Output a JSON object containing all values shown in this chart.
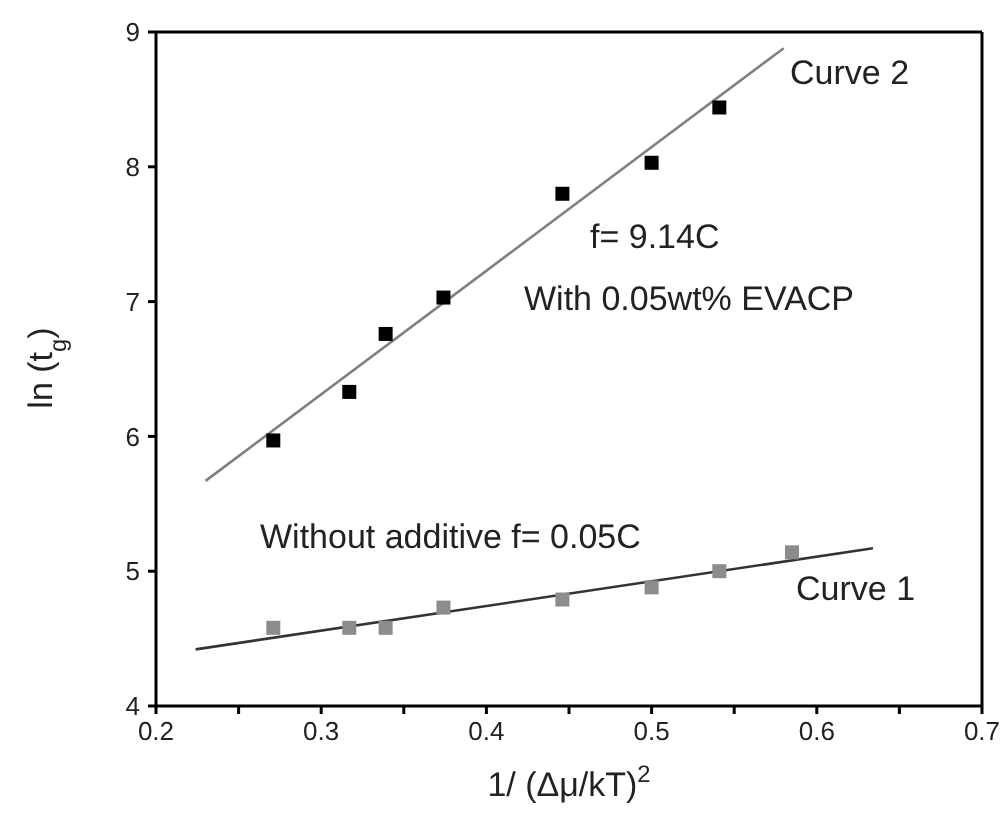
{
  "chart_data": {
    "type": "scatter",
    "xlabel": "1/ (Δμ/kT)$^{2}$",
    "ylabel": "ln (t$_{g}$)",
    "xlim": [
      0.2,
      0.7
    ],
    "ylim": [
      4,
      9
    ],
    "xticks": [
      0.2,
      {
        "value": 0.25,
        "label": null
      },
      0.3,
      {
        "value": 0.35,
        "label": null
      },
      0.4,
      {
        "value": 0.45,
        "label": null
      },
      0.5,
      {
        "value": 0.55,
        "label": null
      },
      0.6,
      {
        "value": 0.65,
        "label": null
      },
      0.7
    ],
    "yticks": [
      4,
      5,
      6,
      7,
      8,
      9
    ],
    "grid": false,
    "legend": false,
    "marker": "square",
    "series": [
      {
        "color": "#000000",
        "x": [
          0.271,
          0.317,
          0.339,
          0.374,
          0.446,
          0.5,
          0.541
        ],
        "values": [
          5.97,
          6.33,
          6.76,
          7.03,
          7.8,
          8.03,
          8.44
        ]
      },
      {
        "type": "line",
        "color": "#808080",
        "marker": "none",
        "line_style": "solid",
        "x": [
          0.23,
          0.58
        ],
        "values": [
          5.67,
          8.88
        ]
      },
      {
        "color": "#8c8c8c",
        "x": [
          0.271,
          0.317,
          0.339,
          0.374,
          0.446,
          0.5,
          0.541,
          0.585
        ],
        "values": [
          4.58,
          4.58,
          4.58,
          4.73,
          4.79,
          4.88,
          5.0,
          5.14
        ]
      },
      {
        "type": "line",
        "color": "#333333",
        "marker": "none",
        "line_style": "solid",
        "x": [
          0.224,
          0.634
        ],
        "values": [
          4.42,
          5.17
        ]
      }
    ],
    "annotations": [
      "Curve 2",
      "f= 9.14C",
      "With 0.05wt% EVACP",
      "Without additive  f= 0.05C",
      "Curve 1"
    ]
  }
}
